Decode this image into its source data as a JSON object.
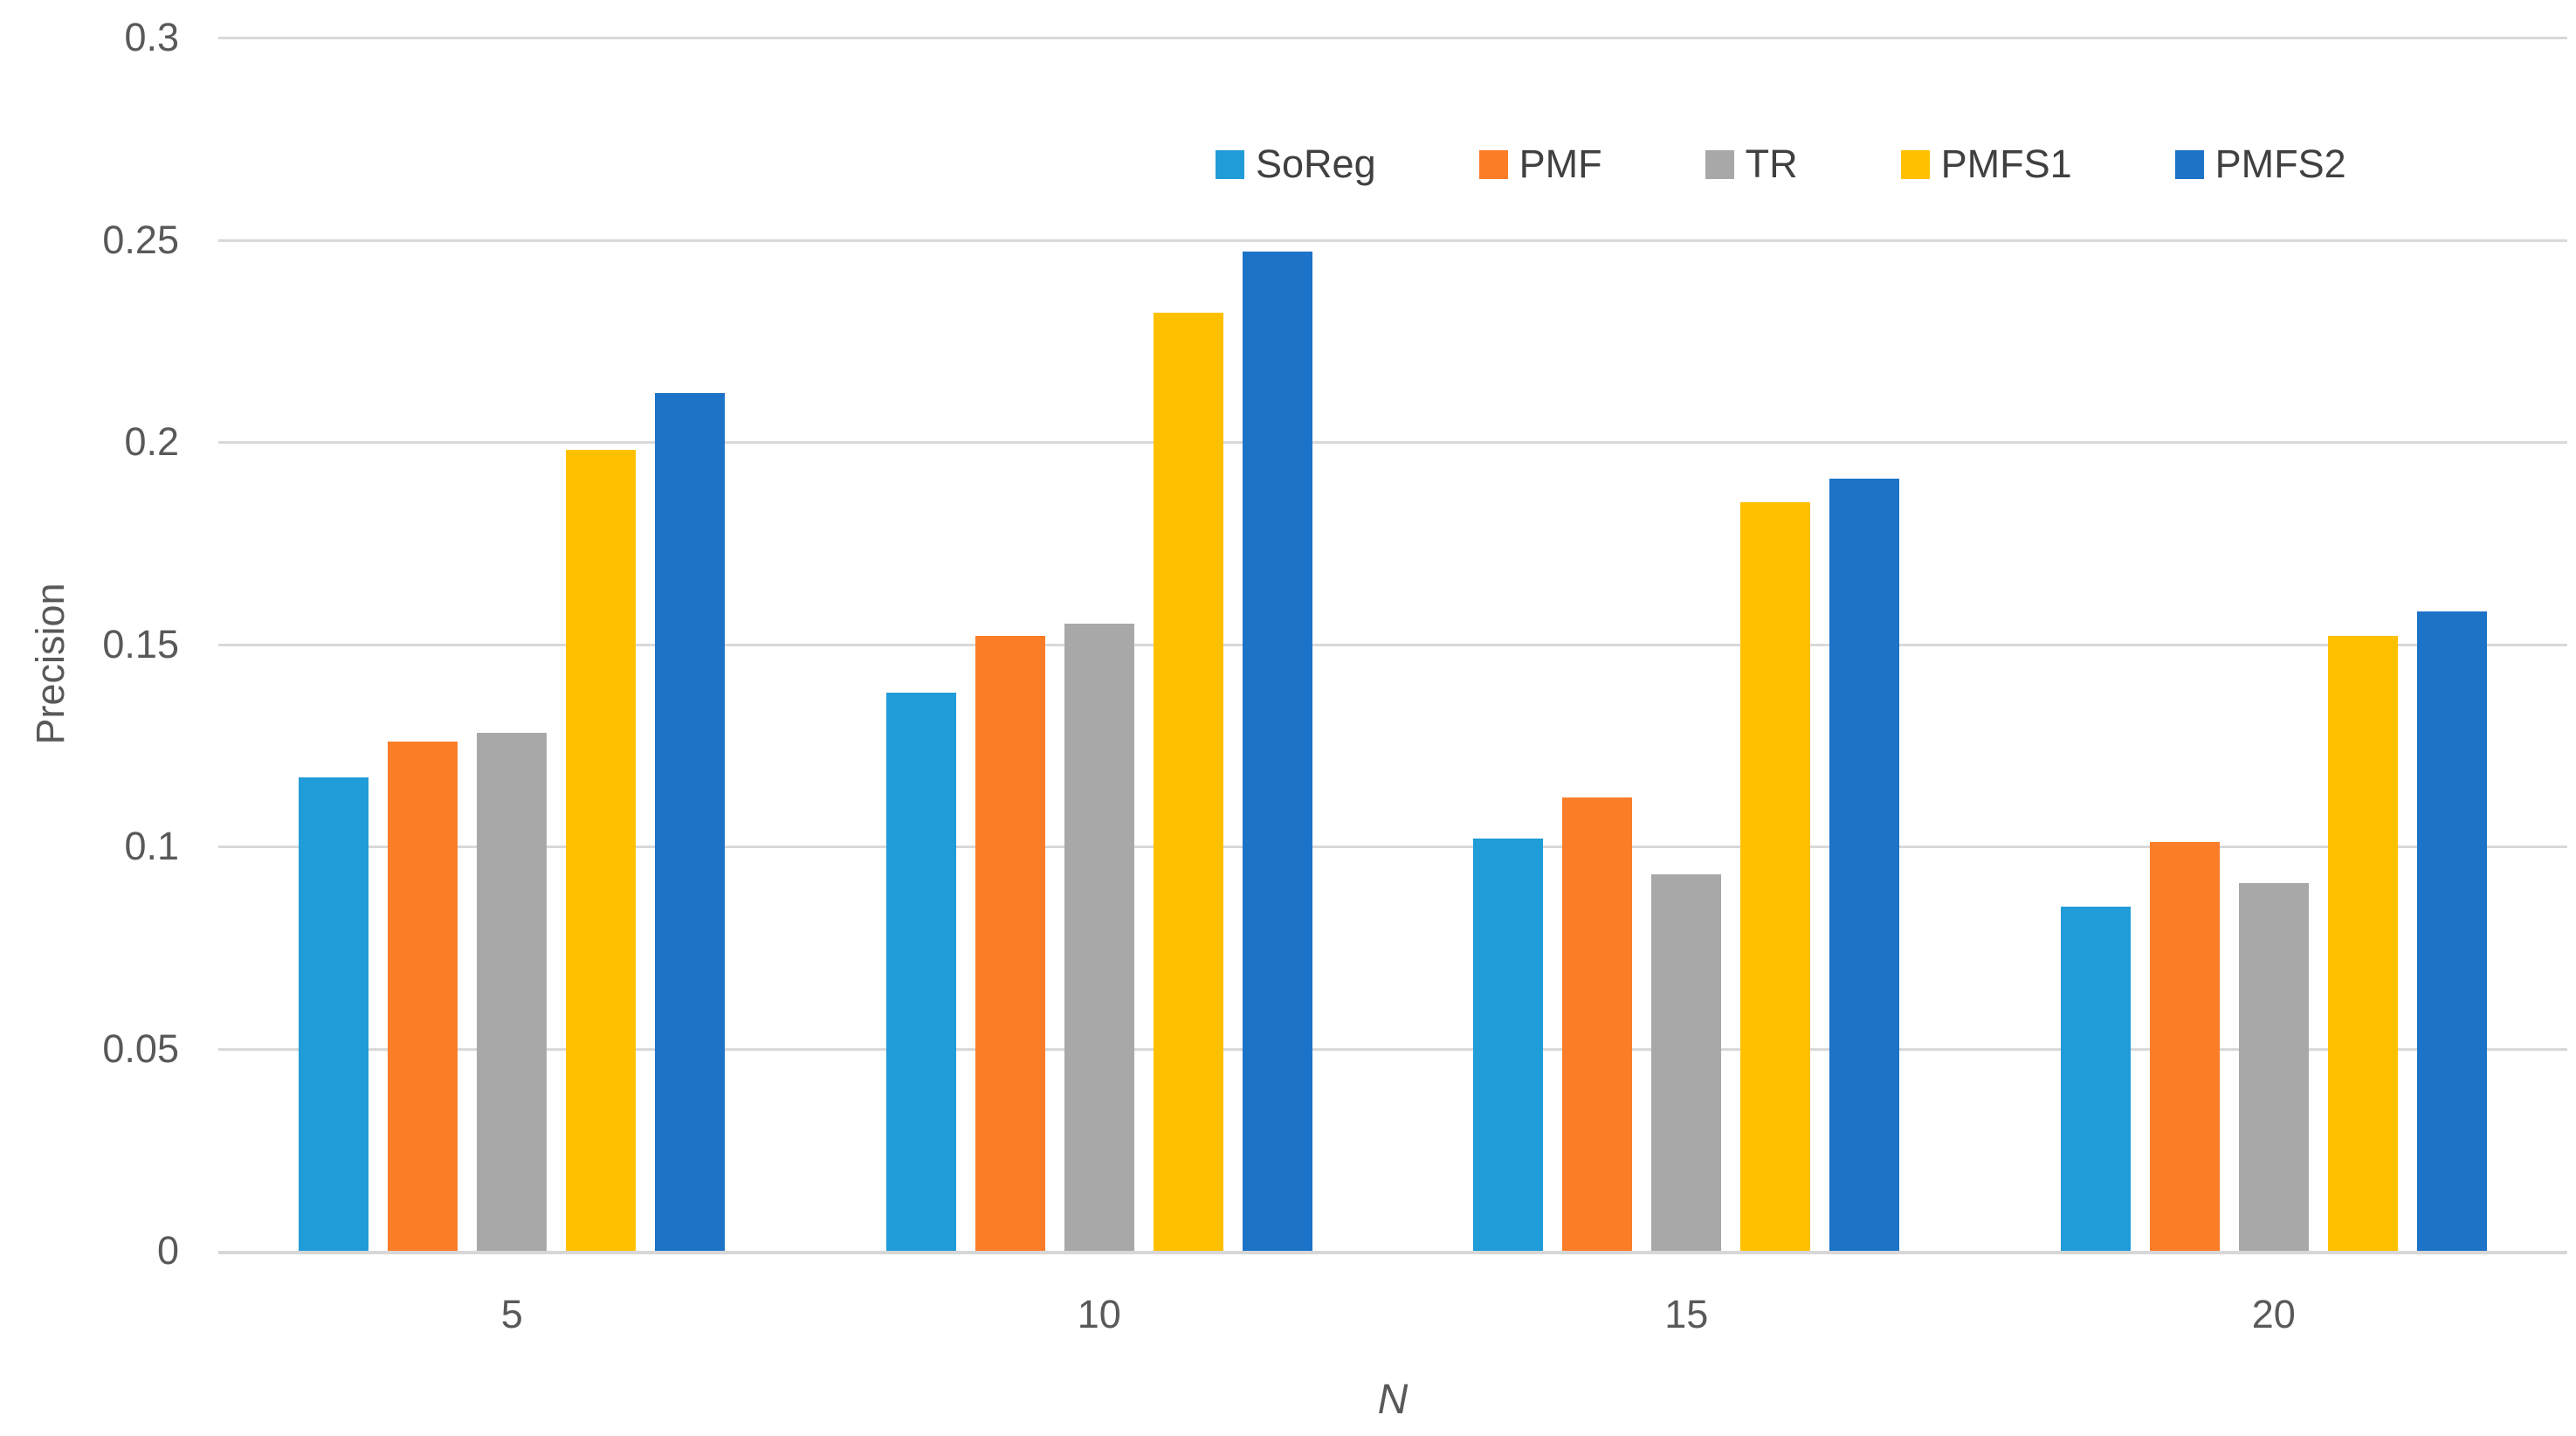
{
  "chart_data": {
    "type": "bar",
    "title": "",
    "xlabel": "N",
    "ylabel": "Precision",
    "categories": [
      "5",
      "10",
      "15",
      "20"
    ],
    "series": [
      {
        "name": "SoReg",
        "color": "#209CD8",
        "values": [
          0.117,
          0.138,
          0.102,
          0.085
        ]
      },
      {
        "name": "PMF",
        "color": "#FB7D28",
        "values": [
          0.126,
          0.152,
          0.112,
          0.101
        ]
      },
      {
        "name": "TR",
        "color": "#A8A8A8",
        "values": [
          0.128,
          0.155,
          0.093,
          0.091
        ]
      },
      {
        "name": "PMFS1",
        "color": "#FFC000",
        "values": [
          0.198,
          0.232,
          0.185,
          0.152
        ]
      },
      {
        "name": "PMFS2",
        "color": "#1C73C8",
        "values": [
          0.212,
          0.247,
          0.191,
          0.158
        ]
      }
    ],
    "ylim": [
      0,
      0.3
    ],
    "ytick_labels": [
      "0.3",
      "0.25",
      "0.2",
      "0.15",
      "0.1",
      "0.05",
      "0"
    ],
    "grid": "horizontal",
    "legend_position": "top-center",
    "legend": [
      "SoReg",
      "PMF",
      "TR",
      "PMFS1",
      "PMFS2"
    ]
  },
  "colors": {
    "background": "#FFFFFF",
    "gridline": "#D9D9D9",
    "axis_line": "#D7D7D7",
    "tick_text": "#595959",
    "legend_text": "#404040"
  }
}
